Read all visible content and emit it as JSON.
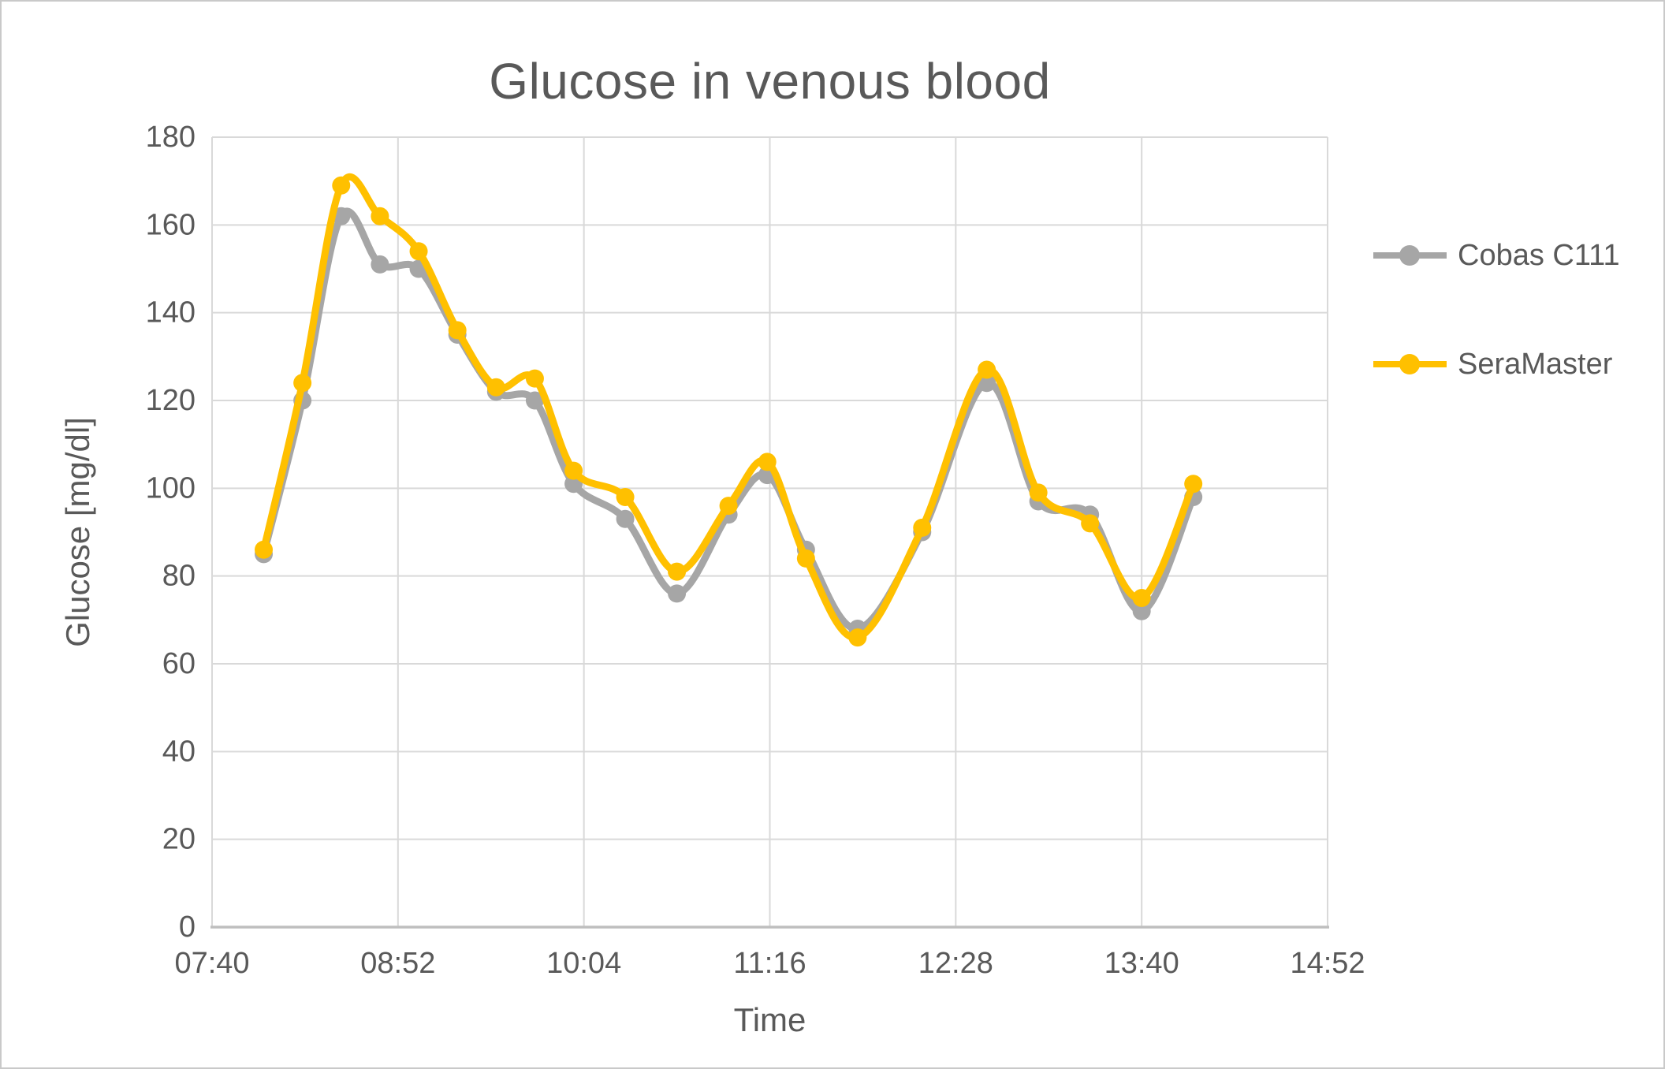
{
  "title": "Glucose in venous blood",
  "colors": {
    "background": "#FFFFFF",
    "border": "#C9C9C9",
    "grid": "#D9D9D9",
    "axis_line": "#BFBFBF",
    "text": "#595959",
    "series_gray": "#A6A6A6",
    "series_yellow": "#FFC000"
  },
  "chart_data": {
    "type": "line",
    "title": "Glucose in venous blood",
    "xlabel": "Time",
    "ylabel": "Glucose [mg/dl]",
    "x_ticks": [
      "07:40",
      "08:52",
      "10:04",
      "11:16",
      "12:28",
      "13:40",
      "14:52"
    ],
    "y_ticks": [
      0,
      20,
      40,
      60,
      80,
      100,
      120,
      140,
      160,
      180
    ],
    "ylim": [
      0,
      180
    ],
    "x_axis_start": "07:40",
    "x_axis_end": "14:52",
    "grid": true,
    "smooth_lines": true,
    "marker": "circle",
    "legend_position": "right",
    "x": [
      "08:00",
      "08:15",
      "08:30",
      "08:45",
      "09:00",
      "09:15",
      "09:30",
      "09:45",
      "10:00",
      "10:20",
      "10:40",
      "11:00",
      "11:15",
      "11:30",
      "11:50",
      "12:15",
      "12:40",
      "13:00",
      "13:20",
      "13:40",
      "14:00"
    ],
    "series": [
      {
        "name": "Cobas C111",
        "color": "#A6A6A6",
        "values": [
          85,
          120,
          162,
          151,
          150,
          135,
          122,
          120,
          101,
          93,
          76,
          94,
          103,
          86,
          68,
          90,
          124,
          97,
          94,
          72,
          98
        ]
      },
      {
        "name": "SeraMaster",
        "color": "#FFC000",
        "values": [
          86,
          124,
          169,
          162,
          154,
          136,
          123,
          125,
          104,
          98,
          81,
          96,
          106,
          84,
          66,
          91,
          127,
          99,
          92,
          75,
          101
        ]
      }
    ]
  }
}
